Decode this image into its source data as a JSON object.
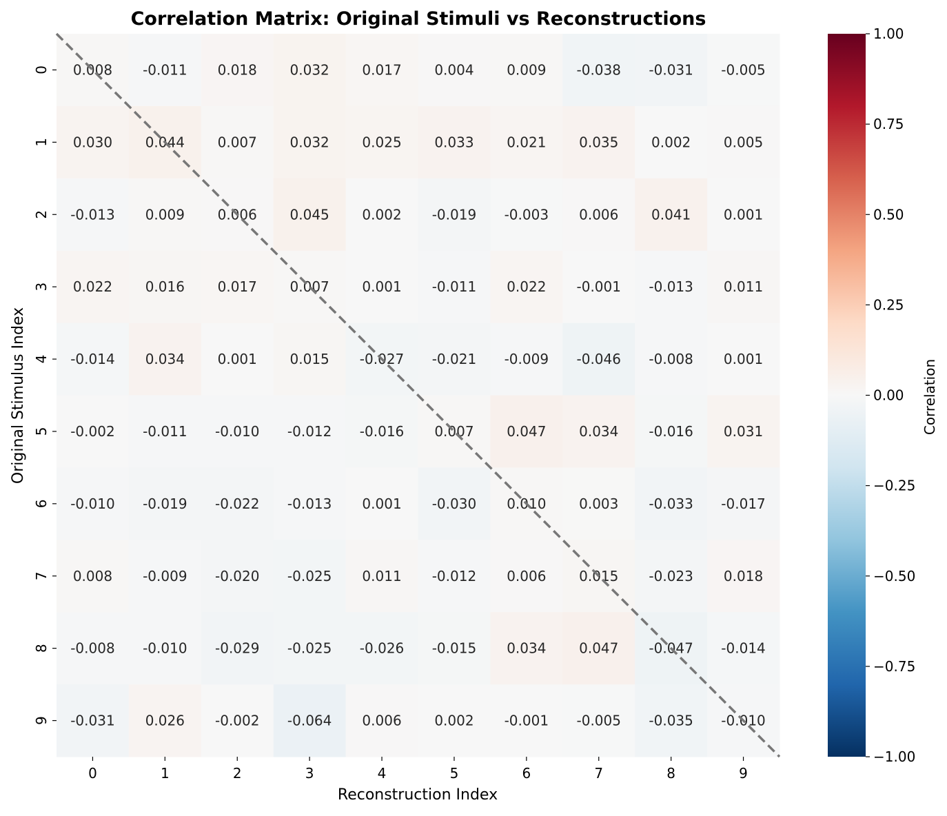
{
  "chart_data": {
    "type": "heatmap",
    "title": "Correlation Matrix: Original Stimuli vs Reconstructions",
    "xlabel": "Reconstruction Index",
    "ylabel": "Original Stimulus Index",
    "x_ticks": [
      "0",
      "1",
      "2",
      "3",
      "4",
      "5",
      "6",
      "7",
      "8",
      "9"
    ],
    "y_ticks": [
      "0",
      "1",
      "2",
      "3",
      "4",
      "5",
      "6",
      "7",
      "8",
      "9"
    ],
    "values": [
      [
        0.008,
        -0.011,
        0.018,
        0.032,
        0.017,
        0.004,
        0.009,
        -0.038,
        -0.031,
        -0.005
      ],
      [
        0.03,
        0.044,
        0.007,
        0.032,
        0.025,
        0.033,
        0.021,
        0.035,
        0.002,
        0.005
      ],
      [
        -0.013,
        0.009,
        0.006,
        0.045,
        0.002,
        -0.019,
        -0.003,
        0.006,
        0.041,
        0.001
      ],
      [
        0.022,
        0.016,
        0.017,
        0.007,
        0.001,
        -0.011,
        0.022,
        -0.001,
        -0.013,
        0.011
      ],
      [
        -0.014,
        0.034,
        0.001,
        0.015,
        -0.027,
        -0.021,
        -0.009,
        -0.046,
        -0.008,
        0.001
      ],
      [
        -0.002,
        -0.011,
        -0.01,
        -0.012,
        -0.016,
        0.007,
        0.047,
        0.034,
        -0.016,
        0.031
      ],
      [
        -0.01,
        -0.019,
        -0.022,
        -0.013,
        0.001,
        -0.03,
        0.01,
        0.003,
        -0.033,
        -0.017
      ],
      [
        0.008,
        -0.009,
        -0.02,
        -0.025,
        0.011,
        -0.012,
        0.006,
        0.015,
        -0.023,
        0.018
      ],
      [
        -0.008,
        -0.01,
        -0.029,
        -0.025,
        -0.026,
        -0.015,
        0.034,
        0.047,
        -0.047,
        -0.014
      ],
      [
        -0.031,
        0.026,
        -0.002,
        -0.064,
        0.006,
        0.002,
        -0.001,
        -0.005,
        -0.035,
        -0.01
      ]
    ],
    "value_format_decimals": 3,
    "colormap": "RdBu_r",
    "vmin": -1.0,
    "vmax": 1.0,
    "colorbar": {
      "label": "Correlation",
      "ticks": [
        "1.00",
        "0.75",
        "0.50",
        "0.25",
        "0.00",
        "−0.25",
        "−0.50",
        "−0.75",
        "−1.00"
      ],
      "tick_values": [
        1.0,
        0.75,
        0.5,
        0.25,
        0.0,
        -0.25,
        -0.5,
        -0.75,
        -1.0
      ]
    },
    "diagonal_line": {
      "style": "dashed",
      "color": "#777777"
    },
    "grid": false
  }
}
